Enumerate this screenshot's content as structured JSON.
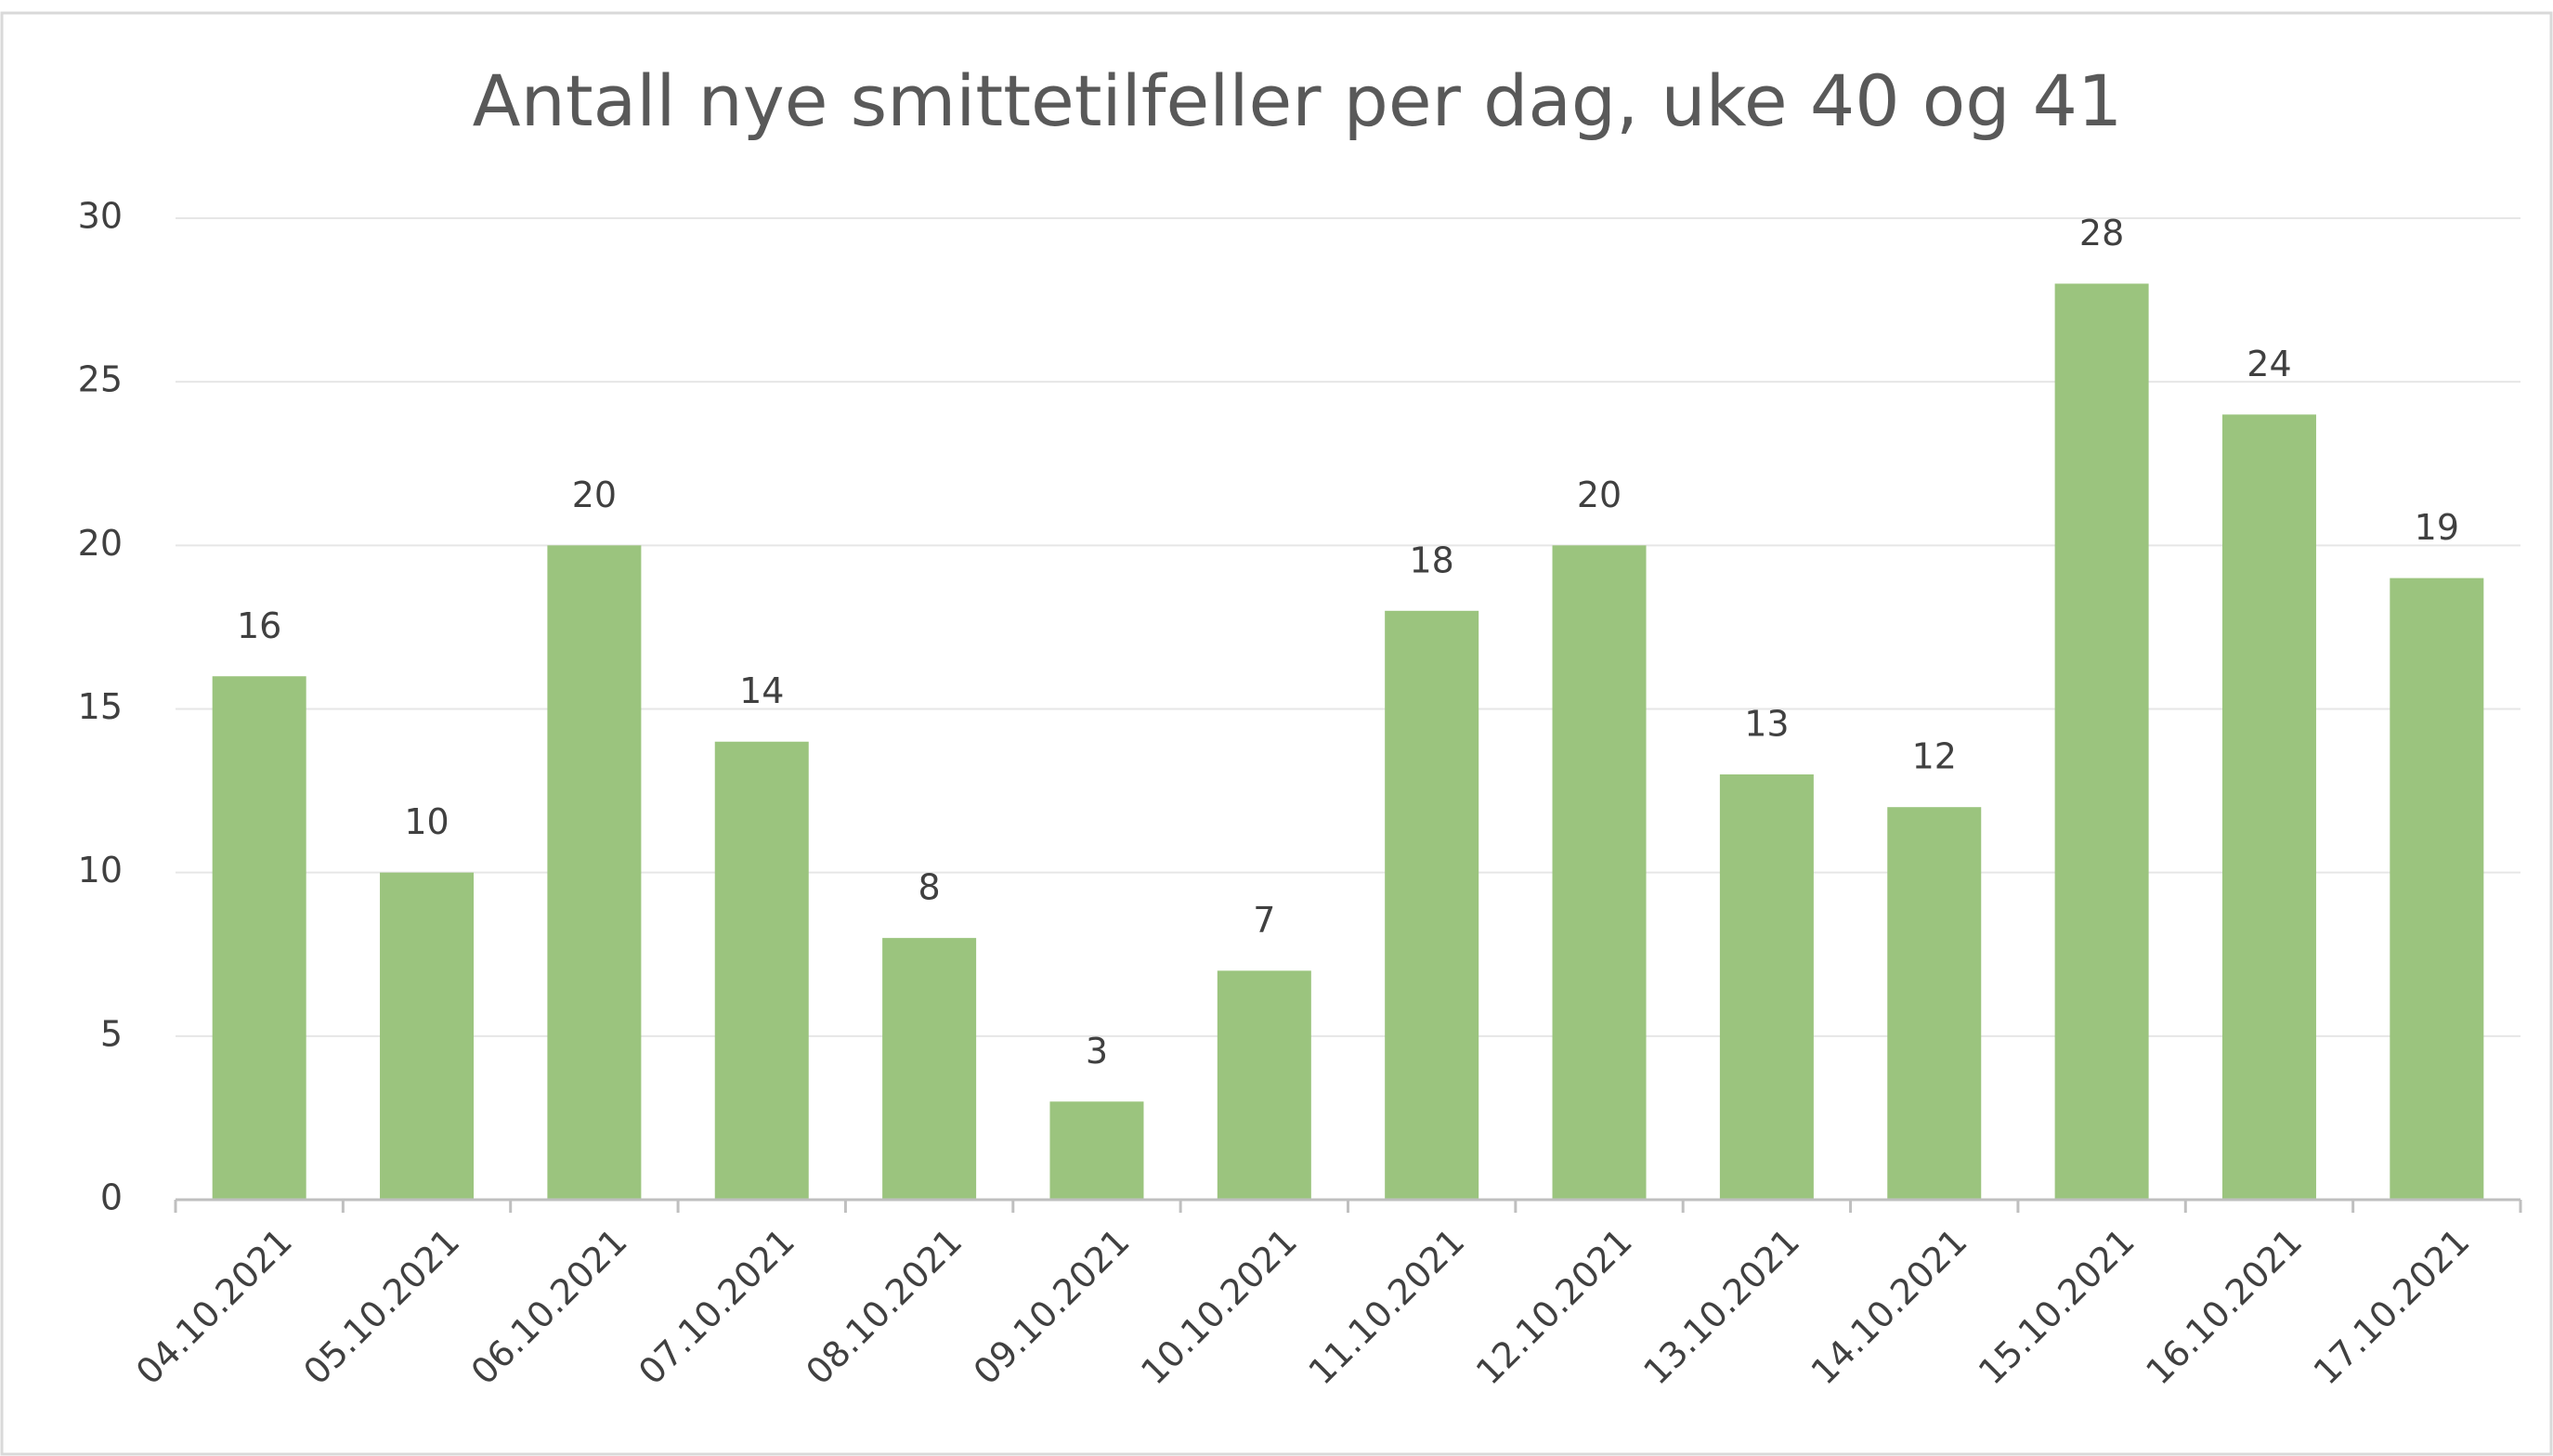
{
  "chart_data": {
    "type": "bar",
    "title": "Antall nye smittetilfeller per dag, uke 40 og 41",
    "categories": [
      "04.10.2021",
      "05.10.2021",
      "06.10.2021",
      "07.10.2021",
      "08.10.2021",
      "09.10.2021",
      "10.10.2021",
      "11.10.2021",
      "12.10.2021",
      "13.10.2021",
      "14.10.2021",
      "15.10.2021",
      "16.10.2021",
      "17.10.2021"
    ],
    "values": [
      16,
      10,
      20,
      14,
      8,
      3,
      7,
      18,
      20,
      13,
      12,
      28,
      24,
      19
    ],
    "color": "#9bc47e",
    "ylim": [
      0,
      30
    ],
    "yticks": [
      0,
      5,
      10,
      15,
      20,
      25,
      30
    ],
    "grid": true
  }
}
